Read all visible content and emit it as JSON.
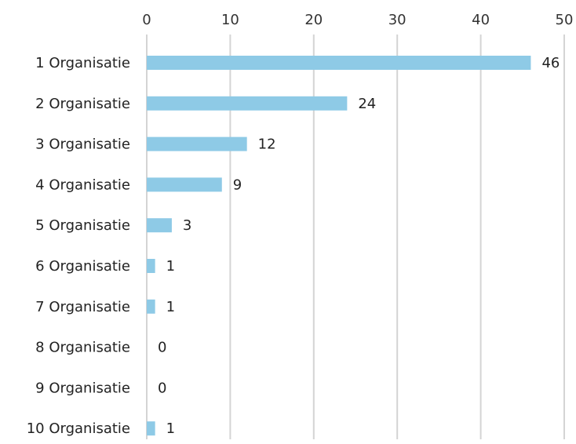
{
  "chart_data": {
    "type": "bar",
    "orientation": "horizontal",
    "categories": [
      "1 Organisatie",
      "2 Organisatie",
      "3 Organisatie",
      "4 Organisatie",
      "5 Organisatie",
      "6 Organisatie",
      "7 Organisatie",
      "8 Organisatie",
      "9 Organisatie",
      "10 Organisatie"
    ],
    "values": [
      46,
      24,
      12,
      9,
      3,
      1,
      1,
      0,
      0,
      1
    ],
    "data_labels": [
      "46",
      "24",
      "12",
      "9",
      "3",
      "1",
      "1",
      "0",
      "0",
      "1"
    ],
    "xlim": [
      0,
      50
    ],
    "x_ticks": [
      "0",
      "10",
      "20",
      "30",
      "40",
      "50"
    ],
    "x_tick_values": [
      0,
      10,
      20,
      30,
      40,
      50
    ],
    "x_axis_position": "top",
    "grid": "vertical",
    "legend": "none",
    "bar_color": "#8ecae6",
    "grid_color": "#d4d4d4"
  }
}
